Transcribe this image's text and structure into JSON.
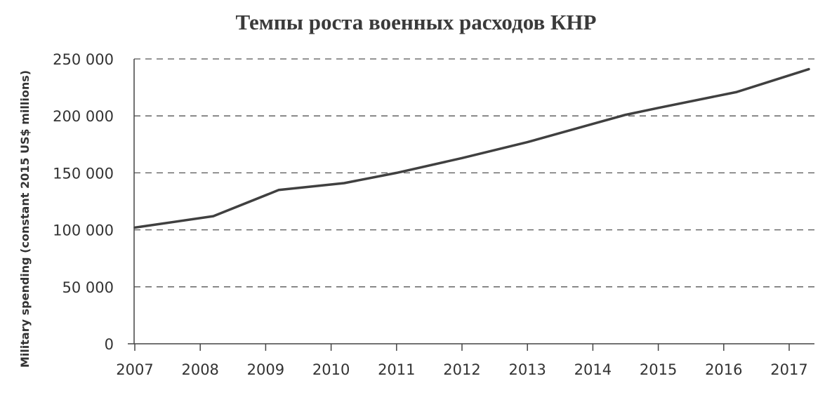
{
  "chart_data": {
    "type": "line",
    "title": "Темпы роста военных расходов КНР",
    "xlabel": "",
    "ylabel": "Military spending (constant 2015 US$ millions)",
    "ylim": [
      0,
      250000
    ],
    "xlim": [
      2007,
      2017.3
    ],
    "grid": true,
    "legend": "none",
    "x_ticks": [
      2007,
      2008,
      2009,
      2010,
      2011,
      2012,
      2013,
      2014,
      2015,
      2016,
      2017
    ],
    "y_ticks": [
      0,
      50000,
      100000,
      150000,
      200000,
      250000
    ],
    "x_tick_labels": [
      "2007",
      "2008",
      "2009",
      "2010",
      "2011",
      "2012",
      "2013",
      "2014",
      "2015",
      "2016",
      "2017"
    ],
    "y_tick_labels": [
      "0",
      "50 000",
      "100 000",
      "150 000",
      "200 000",
      "250 000"
    ],
    "series": [
      {
        "color": "#404040",
        "x": [
          2007,
          2008.2,
          2009.2,
          2010.2,
          2011,
          2012,
          2013,
          2014,
          2014.5,
          2015,
          2016.2,
          2017.3
        ],
        "y": [
          102000,
          112000,
          135000,
          141000,
          150000,
          163000,
          177000,
          193000,
          201000,
          207000,
          221000,
          241000
        ]
      }
    ]
  }
}
